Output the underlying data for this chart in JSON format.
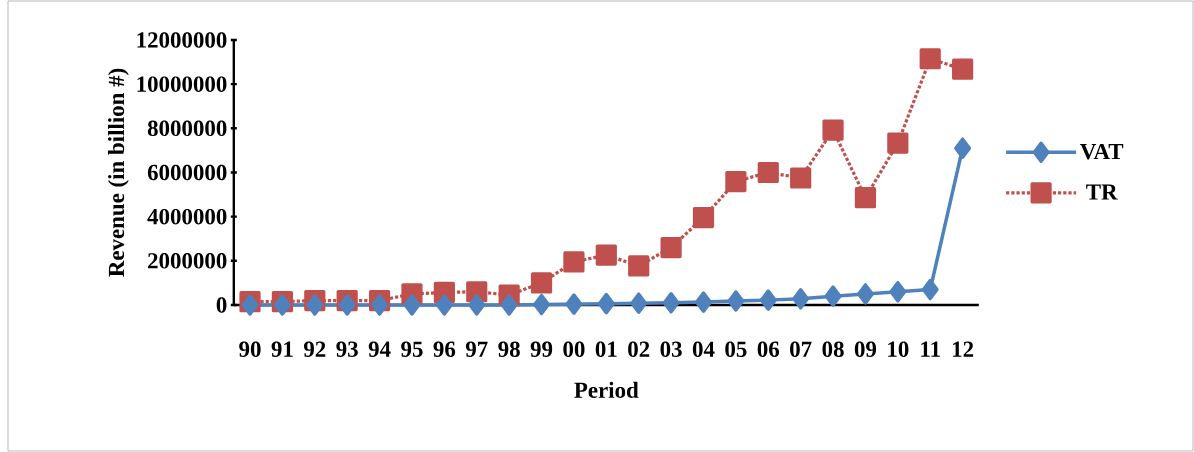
{
  "chart_data": {
    "type": "line",
    "xlabel": "Period",
    "ylabel": "Revenue (in billion #)",
    "categories": [
      "90",
      "91",
      "92",
      "93",
      "94",
      "95",
      "96",
      "97",
      "98",
      "99",
      "00",
      "01",
      "02",
      "03",
      "04",
      "05",
      "06",
      "07",
      "08",
      "09",
      "10",
      "11",
      "12"
    ],
    "series": [
      {
        "name": "VAT",
        "color": "#4f81bd",
        "marker": "diamond",
        "line_style": "solid",
        "values": [
          0,
          0,
          0,
          0,
          0,
          0,
          0,
          0,
          0,
          20000,
          40000,
          60000,
          80000,
          100000,
          130000,
          180000,
          220000,
          280000,
          400000,
          500000,
          600000,
          700000,
          7100000
        ]
      },
      {
        "name": "TR",
        "color": "#c0504d",
        "marker": "square",
        "line_style": "dotted",
        "values": [
          150000,
          150000,
          200000,
          200000,
          200000,
          500000,
          570000,
          600000,
          450000,
          1000000,
          1950000,
          2260000,
          1770000,
          2600000,
          3960000,
          5590000,
          6000000,
          5750000,
          7920000,
          4860000,
          7330000,
          11150000,
          10680000
        ]
      }
    ],
    "ylim": [
      0,
      12000000
    ],
    "yticks": [
      0,
      2000000,
      4000000,
      6000000,
      8000000,
      10000000,
      12000000
    ],
    "grid": false,
    "legend": "right"
  }
}
